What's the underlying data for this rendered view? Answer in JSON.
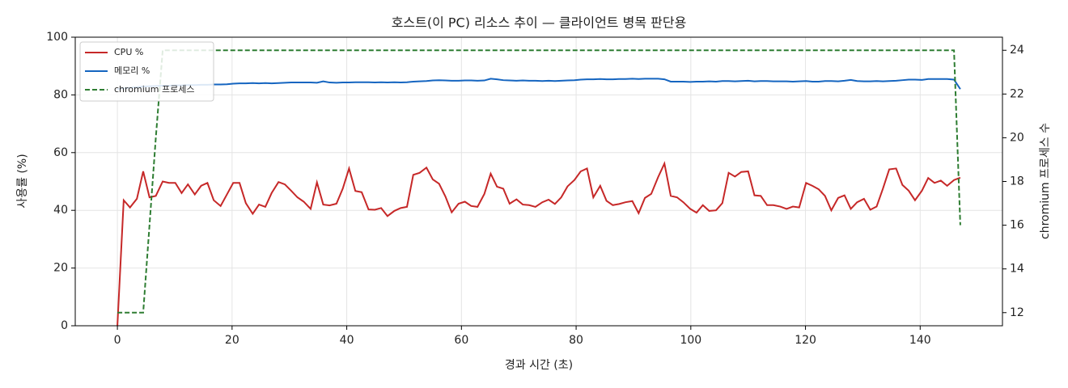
{
  "chart_data": {
    "type": "line",
    "title": "호스트(이 PC) 리소스 추이 — 클라이언트 병목 판단용",
    "xlabel": "경과 시간 (초)",
    "ylabel": "사용률 (%)",
    "y2label": "chromium 프로세스 수",
    "x": [
      0,
      1.1,
      2.2,
      3.4,
      4.5,
      5.6,
      6.7,
      7.9,
      9.0,
      10.1,
      11.2,
      12.3,
      13.5,
      14.6,
      15.7,
      16.8,
      18.0,
      19.1,
      20.2,
      21.3,
      22.4,
      23.6,
      24.7,
      25.8,
      26.9,
      28.1,
      29.2,
      30.3,
      31.4,
      32.5,
      33.7,
      34.8,
      35.9,
      37.0,
      38.2,
      39.3,
      40.4,
      41.5,
      42.6,
      43.8,
      44.9,
      46.0,
      47.1,
      48.3,
      49.4,
      50.5,
      51.6,
      52.7,
      53.9,
      55.0,
      56.1,
      57.2,
      58.3,
      59.5,
      60.6,
      61.7,
      62.8,
      64.0,
      65.1,
      66.2,
      67.3,
      68.4,
      69.6,
      70.7,
      71.8,
      72.9,
      74.1,
      75.2,
      76.3,
      77.4,
      78.5,
      79.7,
      80.8,
      81.9,
      83.0,
      84.2,
      85.3,
      86.4,
      87.5,
      88.6,
      89.8,
      90.9,
      92.0,
      93.1,
      94.3,
      95.4,
      96.5,
      97.6,
      98.7,
      99.9,
      101.0,
      102.1,
      103.2,
      104.4,
      105.5,
      106.6,
      107.7,
      108.8,
      110.0,
      111.1,
      112.2,
      113.3,
      114.4,
      115.6,
      116.7,
      117.8,
      118.9,
      120.1,
      121.2,
      122.3,
      123.4,
      124.5,
      125.7,
      126.8,
      127.9,
      129.0,
      130.2,
      131.3,
      132.4,
      133.5,
      134.6,
      135.8,
      136.9,
      138.0,
      139.1,
      140.3,
      141.4,
      142.5,
      143.6,
      144.7,
      145.9,
      147.0
    ],
    "series": [
      {
        "name": "CPU %",
        "color": "#c62828",
        "axis": "y",
        "values": [
          0,
          43.5,
          41,
          44,
          53.5,
          44.5,
          45,
          50,
          49.5,
          49.5,
          46,
          49,
          45.5,
          48.5,
          49.5,
          43.5,
          41.5,
          45.5,
          49.5,
          49.5,
          42.5,
          38.8,
          42,
          41.2,
          46,
          49.8,
          49,
          46.8,
          44.5,
          43,
          40.5,
          49.7,
          42,
          41.7,
          42.3,
          47.5,
          54.5,
          46.7,
          46.3,
          40.3,
          40.2,
          40.8,
          38,
          39.8,
          40.8,
          41.2,
          52.3,
          53,
          54.8,
          50.7,
          49.2,
          44.8,
          39.3,
          42.3,
          43,
          41.5,
          41.2,
          45.7,
          52.7,
          48.2,
          47.5,
          42.3,
          43.8,
          42,
          41.8,
          41.2,
          42.8,
          43.7,
          42.2,
          44.5,
          48.3,
          50.5,
          53.5,
          54.5,
          44.5,
          48.5,
          43.3,
          41.8,
          42.2,
          42.8,
          43.2,
          39,
          44.3,
          45.7,
          51.5,
          56.2,
          45,
          44.5,
          42.8,
          40.5,
          39.2,
          41.8,
          39.8,
          40,
          42.5,
          53,
          51.7,
          53.3,
          53.5,
          45.2,
          45,
          41.8,
          41.8,
          41.3,
          40.5,
          41.3,
          41,
          49.5,
          48.5,
          47.3,
          45,
          40,
          44.3,
          45.2,
          40.5,
          42.8,
          44,
          40.2,
          41.3,
          47.5,
          54.2,
          54.5,
          48.8,
          46.8,
          43.5,
          46.8,
          51.2,
          49.5,
          50.3,
          48.5,
          50.5,
          51.3
        ]
      },
      {
        "name": "메모리 %",
        "color": "#1565c0",
        "axis": "y",
        "values": [
          82,
          82.3,
          82.5,
          82.7,
          82.9,
          83,
          83.1,
          83.2,
          83.2,
          83.3,
          83.3,
          83.4,
          83.4,
          83.5,
          83.5,
          83.6,
          83.6,
          83.7,
          83.9,
          84,
          84,
          84.1,
          84,
          84.1,
          84,
          84.1,
          84.2,
          84.3,
          84.3,
          84.3,
          84.3,
          84.2,
          84.7,
          84.3,
          84.2,
          84.3,
          84.3,
          84.4,
          84.4,
          84.4,
          84.3,
          84.4,
          84.3,
          84.4,
          84.3,
          84.4,
          84.6,
          84.7,
          84.8,
          85,
          85.1,
          85,
          84.9,
          84.9,
          85,
          85,
          84.9,
          85,
          85.6,
          85.4,
          85.1,
          85,
          84.9,
          85,
          84.9,
          84.9,
          84.8,
          84.9,
          84.8,
          84.9,
          85,
          85.1,
          85.3,
          85.4,
          85.4,
          85.5,
          85.4,
          85.4,
          85.5,
          85.5,
          85.6,
          85.5,
          85.6,
          85.6,
          85.6,
          85.4,
          84.6,
          84.6,
          84.6,
          84.5,
          84.6,
          84.6,
          84.7,
          84.6,
          84.8,
          84.8,
          84.7,
          84.8,
          84.9,
          84.7,
          84.8,
          84.8,
          84.7,
          84.7,
          84.7,
          84.6,
          84.7,
          84.8,
          84.6,
          84.6,
          84.8,
          84.8,
          84.7,
          84.9,
          85.2,
          84.8,
          84.7,
          84.7,
          84.8,
          84.7,
          84.8,
          84.9,
          85.1,
          85.3,
          85.3,
          85.2,
          85.5,
          85.5,
          85.5,
          85.5,
          85.3,
          82
        ]
      },
      {
        "name": "chromium 프로세스",
        "color": "#2e7d32",
        "axis": "y2",
        "linestyle": "dashed",
        "values": [
          12,
          12,
          12,
          12,
          12,
          16,
          20,
          24,
          24,
          24,
          24,
          24,
          24,
          24,
          24,
          24,
          24,
          24,
          24,
          24,
          24,
          24,
          24,
          24,
          24,
          24,
          24,
          24,
          24,
          24,
          24,
          24,
          24,
          24,
          24,
          24,
          24,
          24,
          24,
          24,
          24,
          24,
          24,
          24,
          24,
          24,
          24,
          24,
          24,
          24,
          24,
          24,
          24,
          24,
          24,
          24,
          24,
          24,
          24,
          24,
          24,
          24,
          24,
          24,
          24,
          24,
          24,
          24,
          24,
          24,
          24,
          24,
          24,
          24,
          24,
          24,
          24,
          24,
          24,
          24,
          24,
          24,
          24,
          24,
          24,
          24,
          24,
          24,
          24,
          24,
          24,
          24,
          24,
          24,
          24,
          24,
          24,
          24,
          24,
          24,
          24,
          24,
          24,
          24,
          24,
          24,
          24,
          24,
          24,
          24,
          24,
          24,
          24,
          24,
          24,
          24,
          24,
          24,
          24,
          24,
          24,
          24,
          24,
          24,
          24,
          24,
          24,
          24,
          24,
          24,
          24,
          16
        ]
      }
    ],
    "xlim": [
      -7.35,
      154.35
    ],
    "xticks": [
      0,
      20,
      40,
      60,
      80,
      100,
      120,
      140
    ],
    "ylim": [
      0,
      100
    ],
    "yticks": [
      0,
      20,
      40,
      60,
      80,
      100
    ],
    "y2lim": [
      11.4,
      24.6
    ],
    "y2ticks": [
      12,
      14,
      16,
      18,
      20,
      22,
      24
    ],
    "grid": true,
    "legend": "upper left"
  }
}
